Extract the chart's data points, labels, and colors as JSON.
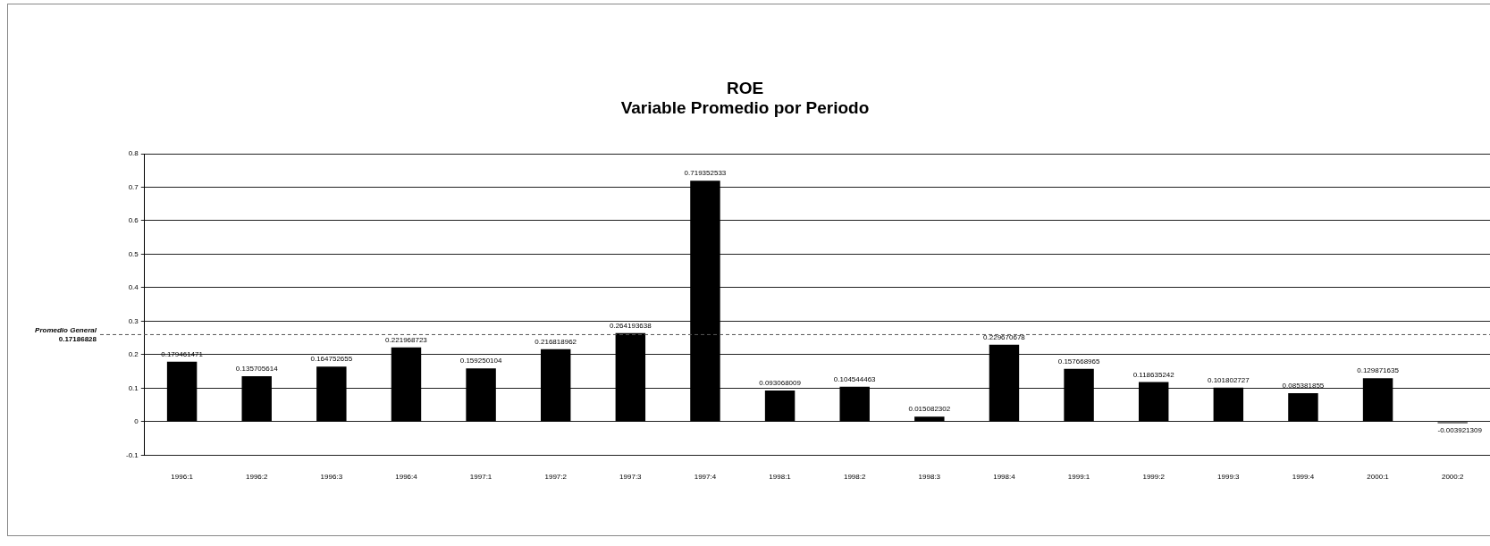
{
  "chart_data": {
    "type": "bar",
    "title": "ROE",
    "subtitle": "Variable Promedio por Periodo",
    "categories": [
      "1996:1",
      "1996:2",
      "1996:3",
      "1996:4",
      "1997:1",
      "1997:2",
      "1997:3",
      "1997:4",
      "1998:1",
      "1998:2",
      "1998:3",
      "1998:4",
      "1999:1",
      "1999:2",
      "1999:3",
      "1999:4",
      "2000:1",
      "2000:2"
    ],
    "values": [
      0.179461471,
      0.135705614,
      0.164752655,
      0.221968723,
      0.159250104,
      0.216818962,
      0.264193638,
      0.719352533,
      0.093068009,
      0.104544463,
      0.015082302,
      0.229670678,
      0.157668965,
      0.118635242,
      0.101802727,
      0.085381855,
      0.129871635,
      -0.003921309
    ],
    "color": "#000000",
    "ylim": [
      -0.1,
      0.8
    ],
    "yticks": [
      -0.1,
      0,
      0.1,
      0.2,
      0.3,
      0.4,
      0.5,
      0.6,
      0.7,
      0.8
    ],
    "grid": "y",
    "data_labels": true,
    "ref_lines": [
      {
        "axis": "y",
        "value": 0.26,
        "label": "Promedio General 0.17186828",
        "line_style": "dashed"
      }
    ]
  }
}
